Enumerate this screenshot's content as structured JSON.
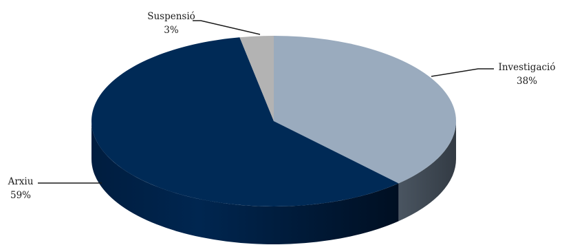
{
  "chart_data": {
    "type": "pie",
    "title": "",
    "categories": [
      "Investigació",
      "Arxiu",
      "Suspensió"
    ],
    "values": [
      38,
      59,
      3
    ],
    "labels": [
      {
        "name": "Investigació",
        "pct": "38%"
      },
      {
        "name": "Arxiu",
        "pct": "59%"
      },
      {
        "name": "Suspensió",
        "pct": "3%"
      }
    ],
    "colors": [
      "#9aabbe",
      "#002a56",
      "#b3b3b3"
    ],
    "side_colors": [
      "#3f4a56",
      "#001a37",
      "#7e7e7e"
    ],
    "style": "3d-pie",
    "legend": "none"
  }
}
